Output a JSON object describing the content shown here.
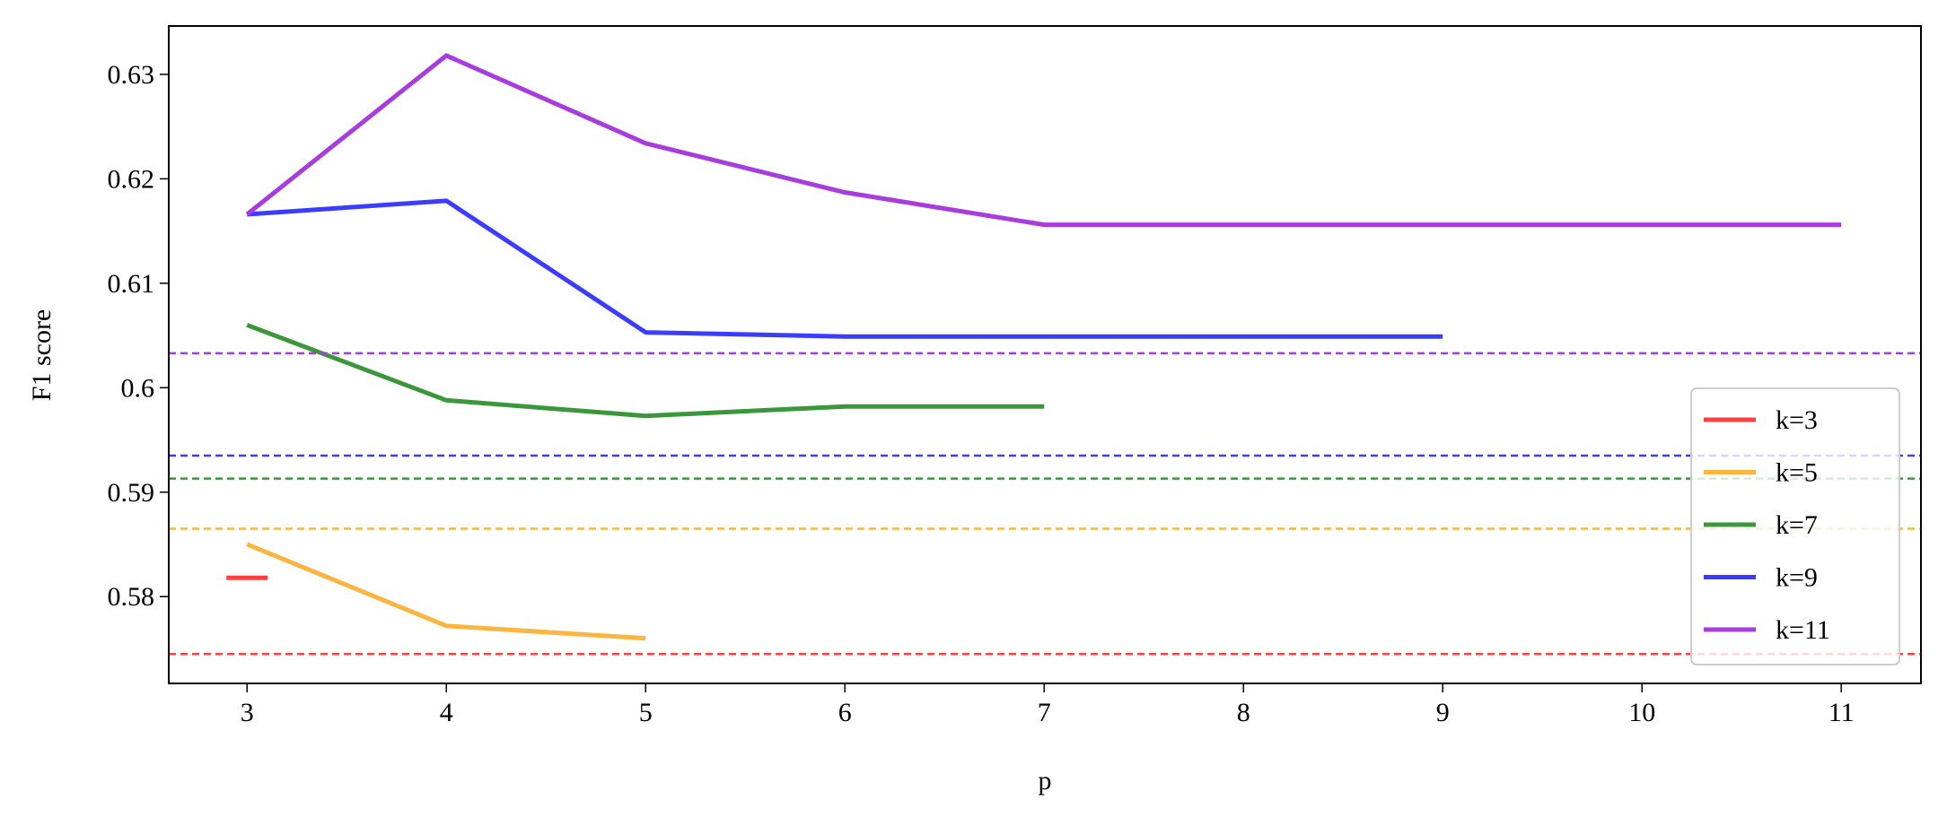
{
  "chart_data": {
    "type": "line",
    "x_label": "p",
    "y_label": "F1 score",
    "xlim": [
      2.607,
      11.4
    ],
    "xticks": [
      3,
      4,
      5,
      6,
      7,
      8,
      9,
      10,
      11
    ],
    "ylim": [
      0.57169,
      0.63463
    ],
    "yticks": [
      0.58,
      0.59,
      0.6,
      0.61,
      0.62,
      0.63
    ],
    "legend": "lower right",
    "series": [
      {
        "name": "k=3",
        "color": "#ff4040",
        "x": [
          3
        ],
        "values": [
          0.5818
        ],
        "baseline": 0.5745
      },
      {
        "name": "k=5",
        "color": "#fbb540",
        "x": [
          3,
          4,
          5
        ],
        "values": [
          0.585,
          0.5772,
          0.576
        ],
        "baseline": 0.5865
      },
      {
        "name": "k=7",
        "color": "#3c963c",
        "x": [
          3,
          4,
          5,
          6,
          7
        ],
        "values": [
          0.606,
          0.5988,
          0.5973,
          0.5982,
          0.5982
        ],
        "baseline": 0.5913
      },
      {
        "name": "k=9",
        "color": "#3c3cff",
        "x": [
          3,
          4,
          5,
          6,
          7,
          8,
          9
        ],
        "values": [
          0.6166,
          0.6179,
          0.6053,
          0.6049,
          0.6049,
          0.6049,
          0.6049
        ],
        "baseline": 0.5935
      },
      {
        "name": "k=11",
        "color": "#a83cdc",
        "x": [
          3,
          4,
          5,
          6,
          7,
          8,
          9,
          10,
          11
        ],
        "values": [
          0.6166,
          0.6318,
          0.6234,
          0.6187,
          0.6156,
          0.6156,
          0.6156,
          0.6156,
          0.6156
        ],
        "baseline": 0.6033
      }
    ]
  }
}
